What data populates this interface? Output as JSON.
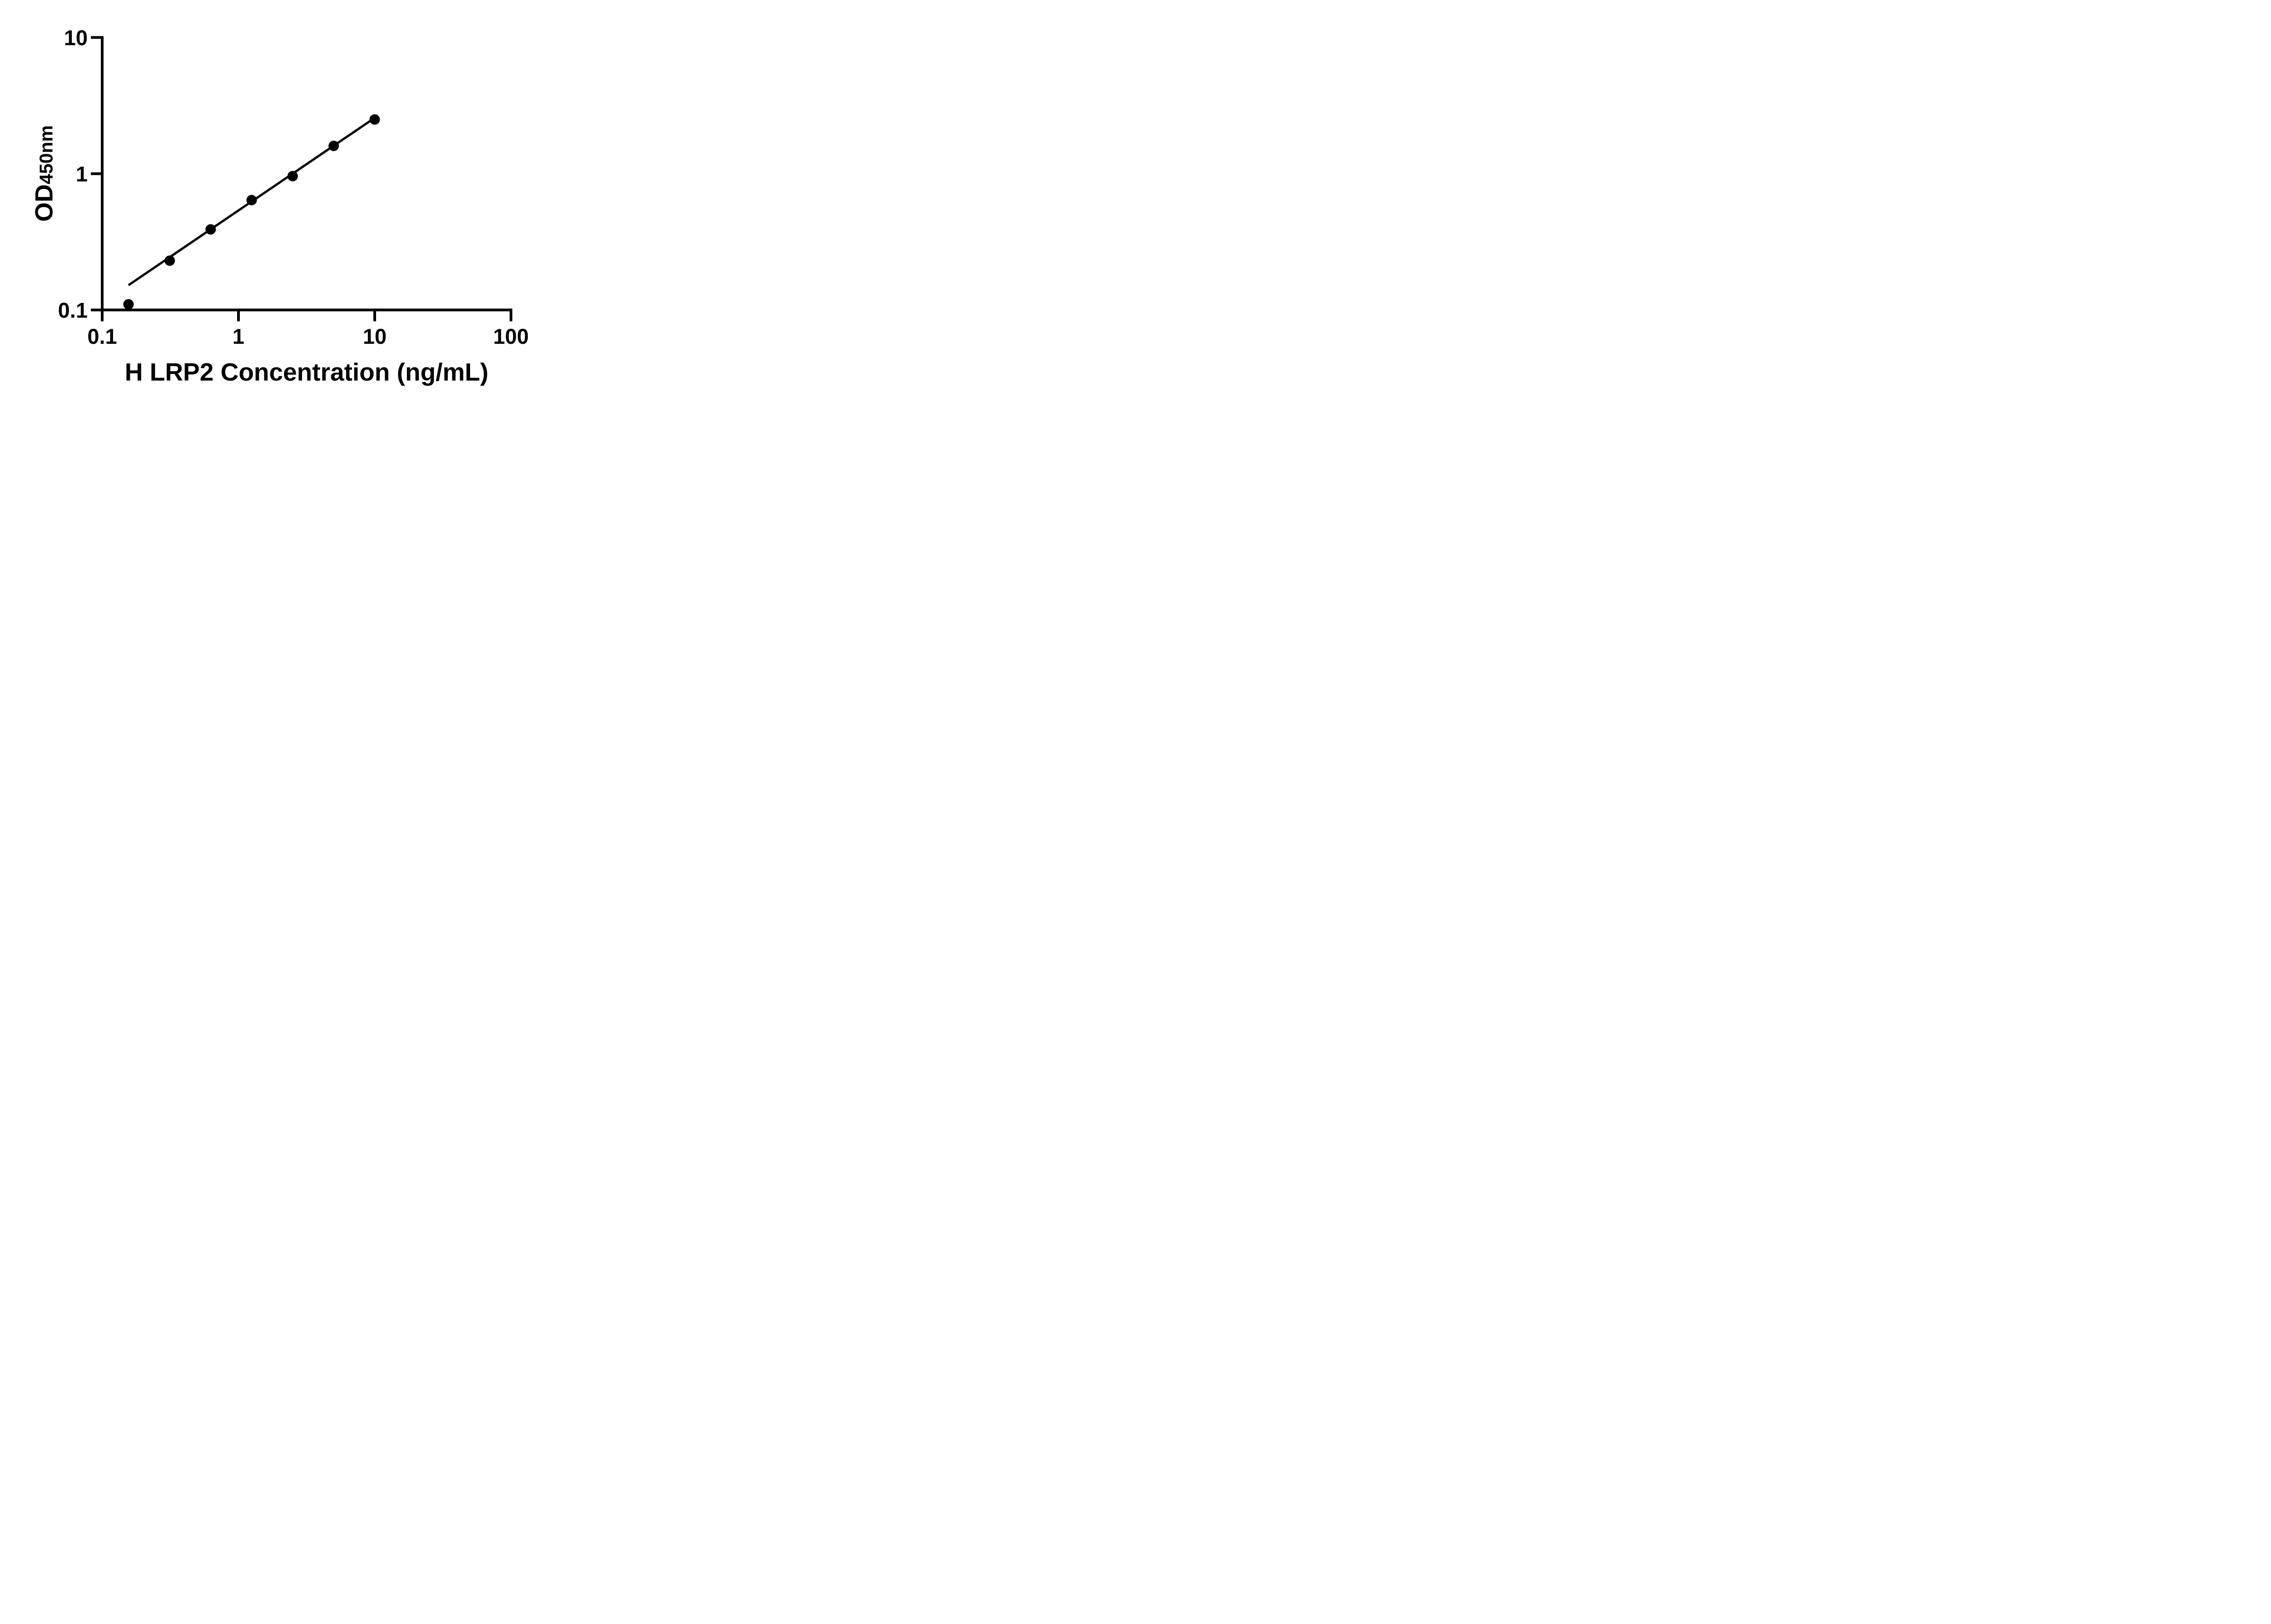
{
  "figure": {
    "background": "#ffffff",
    "foreground": "#000000"
  },
  "chart_data": {
    "type": "scatter",
    "title": "",
    "xlabel": "H LRP2 Concentration (ng/mL)",
    "ylabel_main": "OD",
    "ylabel_sub": "450nm",
    "x_scale": "log",
    "y_scale": "log",
    "xlim": [
      0.1,
      100
    ],
    "ylim": [
      0.1,
      10
    ],
    "grid": false,
    "legend": false,
    "x_ticks": [
      {
        "value": 0.1,
        "label": "0.1"
      },
      {
        "value": 1,
        "label": "1"
      },
      {
        "value": 10,
        "label": "10"
      },
      {
        "value": 100,
        "label": "100"
      }
    ],
    "y_ticks": [
      {
        "value": 0.1,
        "label": "0.1"
      },
      {
        "value": 1,
        "label": "1"
      },
      {
        "value": 10,
        "label": "10"
      }
    ],
    "x": [
      0.156,
      0.313,
      0.625,
      1.25,
      2.5,
      5,
      10
    ],
    "y": [
      0.11,
      0.23,
      0.39,
      0.64,
      0.96,
      1.6,
      2.5
    ],
    "trendline": {
      "x1": 0.156,
      "y1": 0.152,
      "x2": 10,
      "y2": 2.57
    },
    "marker_color": "#000000",
    "line_color": "#000000",
    "axis_color": "#000000"
  }
}
